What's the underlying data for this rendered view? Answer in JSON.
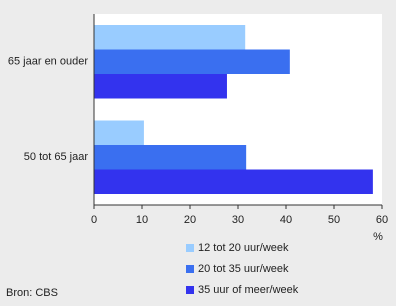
{
  "chart_data": {
    "type": "bar",
    "orientation": "horizontal",
    "categories": [
      "65 jaar en ouder",
      "50 tot 65 jaar"
    ],
    "series": [
      {
        "name": "12 tot 20 uur/week",
        "color": "#99ccff",
        "values": [
          31.5,
          10.4
        ]
      },
      {
        "name": "20 tot 35 uur/week",
        "color": "#3a6ff0",
        "values": [
          40.8,
          31.7
        ]
      },
      {
        "name": "35 uur of meer/week",
        "color": "#3333ee",
        "values": [
          27.7,
          58.1
        ]
      }
    ],
    "xlim": [
      0,
      60
    ],
    "xticks": [
      0,
      10,
      20,
      30,
      40,
      50,
      60
    ],
    "xlabel": "%",
    "source": "Bron: CBS"
  }
}
